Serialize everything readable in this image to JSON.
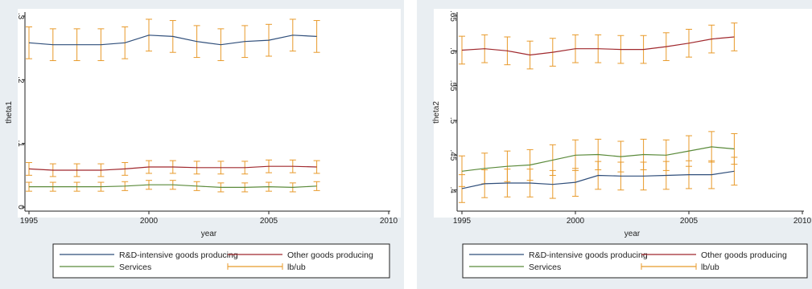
{
  "chart_data": [
    {
      "type": "line",
      "xlabel": "year",
      "ylabel": "theta1",
      "xlim": [
        1995,
        2010
      ],
      "ylim": [
        0,
        0.3
      ],
      "xticks": [
        1995,
        2000,
        2005,
        2010
      ],
      "yticks": [
        0,
        0.1,
        0.2,
        0.3
      ],
      "ytick_labels": [
        "0",
        ".1",
        ".2",
        ".3"
      ],
      "x": [
        1995,
        1996,
        1997,
        1998,
        1999,
        2000,
        2001,
        2002,
        2003,
        2004,
        2005,
        2006,
        2007
      ],
      "series": [
        {
          "name": "R&D-intensive goods producing",
          "color": "#2f4e7a",
          "values": [
            0.258,
            0.255,
            0.255,
            0.255,
            0.258,
            0.27,
            0.268,
            0.26,
            0.255,
            0.26,
            0.262,
            0.27,
            0.268
          ],
          "lb": [
            0.233,
            0.23,
            0.23,
            0.23,
            0.233,
            0.245,
            0.243,
            0.235,
            0.23,
            0.235,
            0.237,
            0.245,
            0.243
          ],
          "ub": [
            0.283,
            0.28,
            0.28,
            0.28,
            0.283,
            0.295,
            0.293,
            0.285,
            0.28,
            0.285,
            0.287,
            0.295,
            0.293
          ]
        },
        {
          "name": "Other goods producing",
          "color": "#a0282d",
          "values": [
            0.06,
            0.058,
            0.058,
            0.058,
            0.06,
            0.063,
            0.063,
            0.062,
            0.062,
            0.062,
            0.064,
            0.064,
            0.063
          ],
          "lb": [
            0.05,
            0.048,
            0.048,
            0.048,
            0.05,
            0.053,
            0.053,
            0.052,
            0.052,
            0.052,
            0.054,
            0.054,
            0.053
          ],
          "ub": [
            0.07,
            0.068,
            0.068,
            0.068,
            0.07,
            0.073,
            0.073,
            0.072,
            0.072,
            0.072,
            0.074,
            0.074,
            0.073
          ]
        },
        {
          "name": "Services",
          "color": "#5a8a3a",
          "values": [
            0.032,
            0.032,
            0.032,
            0.032,
            0.033,
            0.035,
            0.035,
            0.033,
            0.031,
            0.031,
            0.032,
            0.031,
            0.033
          ],
          "lb": [
            0.025,
            0.025,
            0.025,
            0.025,
            0.026,
            0.028,
            0.028,
            0.026,
            0.024,
            0.024,
            0.025,
            0.024,
            0.026
          ],
          "ub": [
            0.039,
            0.039,
            0.039,
            0.039,
            0.04,
            0.042,
            0.042,
            0.04,
            0.038,
            0.038,
            0.039,
            0.038,
            0.04
          ]
        }
      ],
      "errorbar_series": {
        "name": "lb/ub",
        "color": "#e89a2a"
      },
      "legend": {
        "position": "bottom",
        "columns": 2,
        "entries": [
          "R&D-intensive goods producing",
          "Other goods producing",
          "Services",
          "lb/ub"
        ]
      },
      "grid": false
    },
    {
      "type": "line",
      "xlabel": "year",
      "ylabel": "theta2",
      "xlim": [
        1995,
        2010
      ],
      "ylim": [
        0.38,
        0.65
      ],
      "xticks": [
        1995,
        2000,
        2005,
        2010
      ],
      "yticks": [
        0.4,
        0.45,
        0.5,
        0.55,
        0.6,
        0.65
      ],
      "ytick_labels": [
        ".4",
        ".45",
        ".5",
        ".55",
        ".6",
        ".65"
      ],
      "x": [
        1995,
        1996,
        1997,
        1998,
        1999,
        2000,
        2001,
        2002,
        2003,
        2004,
        2005,
        2006,
        2007
      ],
      "series": [
        {
          "name": "R&D-intensive goods producing",
          "color": "#2f4e7a",
          "values": [
            0.402,
            0.409,
            0.41,
            0.41,
            0.408,
            0.411,
            0.421,
            0.42,
            0.42,
            0.421,
            0.422,
            0.422,
            0.427
          ],
          "lb": [
            0.382,
            0.389,
            0.39,
            0.39,
            0.388,
            0.391,
            0.401,
            0.4,
            0.4,
            0.401,
            0.402,
            0.402,
            0.407
          ],
          "ub": [
            0.422,
            0.429,
            0.43,
            0.43,
            0.428,
            0.431,
            0.441,
            0.44,
            0.44,
            0.441,
            0.442,
            0.442,
            0.447
          ]
        },
        {
          "name": "Other goods producing",
          "color": "#a0282d",
          "values": [
            0.601,
            0.603,
            0.6,
            0.594,
            0.598,
            0.603,
            0.603,
            0.602,
            0.602,
            0.606,
            0.611,
            0.617,
            0.62
          ],
          "lb": [
            0.581,
            0.583,
            0.58,
            0.574,
            0.578,
            0.583,
            0.583,
            0.582,
            0.582,
            0.586,
            0.591,
            0.597,
            0.6
          ],
          "ub": [
            0.621,
            0.623,
            0.62,
            0.614,
            0.618,
            0.623,
            0.623,
            0.622,
            0.622,
            0.626,
            0.631,
            0.637,
            0.64
          ]
        },
        {
          "name": "Services",
          "color": "#5a8a3a",
          "values": [
            0.427,
            0.431,
            0.434,
            0.436,
            0.443,
            0.45,
            0.451,
            0.448,
            0.451,
            0.45,
            0.456,
            0.462,
            0.459
          ],
          "lb": [
            0.405,
            0.409,
            0.412,
            0.414,
            0.421,
            0.428,
            0.429,
            0.426,
            0.429,
            0.428,
            0.434,
            0.44,
            0.437
          ],
          "ub": [
            0.449,
            0.453,
            0.456,
            0.458,
            0.465,
            0.472,
            0.473,
            0.47,
            0.473,
            0.472,
            0.478,
            0.484,
            0.481
          ]
        }
      ],
      "errorbar_series": {
        "name": "lb/ub",
        "color": "#e89a2a"
      },
      "legend": {
        "position": "bottom",
        "columns": 2,
        "entries": [
          "R&D-intensive goods producing",
          "Other goods producing",
          "Services",
          "lb/ub"
        ]
      },
      "grid": false
    }
  ]
}
